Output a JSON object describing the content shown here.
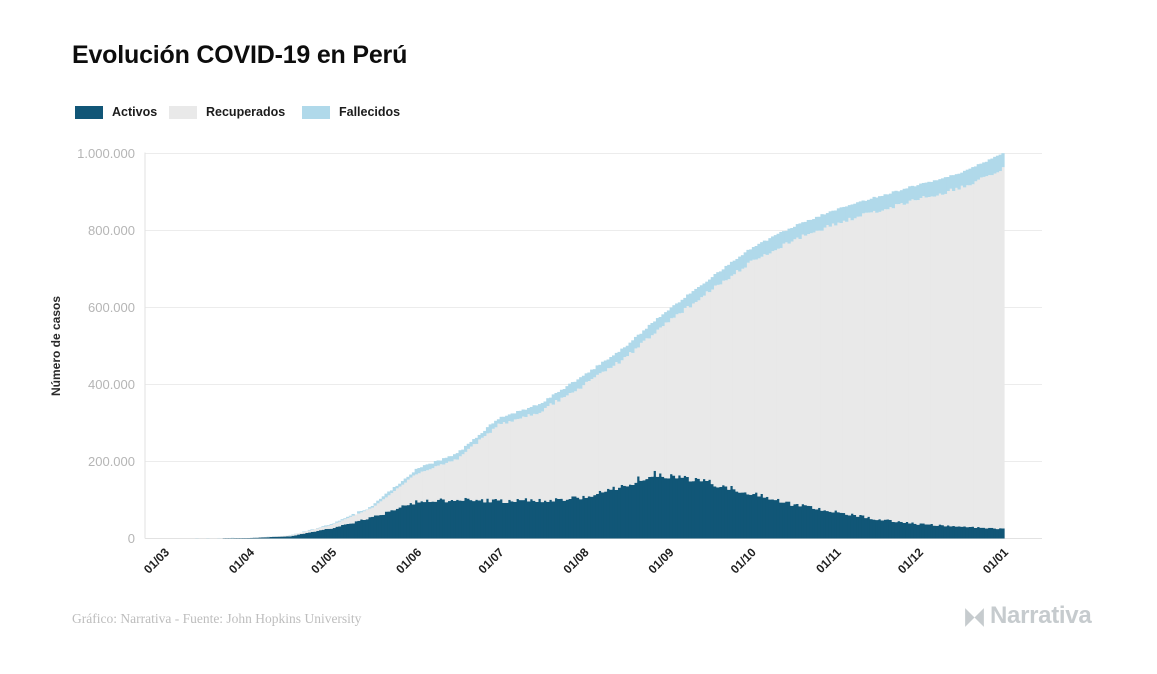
{
  "header": {
    "title": "Evolución COVID-19 en Perú"
  },
  "legend": {
    "items": [
      {
        "label": "Activos",
        "color": "#115677"
      },
      {
        "label": "Recuperados",
        "color": "#e9e9e9"
      },
      {
        "label": "Fallecidos",
        "color": "#b0d9ea"
      }
    ]
  },
  "footer": {
    "credit": "Gráfico: Narrativa - Fuente: John Hopkins University",
    "brand": "Narrativa"
  },
  "chart_data": {
    "type": "area",
    "stacked": true,
    "title": "Evolución COVID-19 en Perú",
    "xlabel": "",
    "ylabel": "Número de casos",
    "ylim": [
      0,
      1000000
    ],
    "grid": "horizontal",
    "legend_position": "top-left",
    "y_ticks": [
      {
        "value": 0,
        "label": "0"
      },
      {
        "value": 200000,
        "label": "200.000"
      },
      {
        "value": 400000,
        "label": "400.000"
      },
      {
        "value": 600000,
        "label": "600.000"
      },
      {
        "value": 800000,
        "label": "800.000"
      },
      {
        "value": 1000000,
        "label": "1.000.000"
      }
    ],
    "x_ticks": [
      {
        "day": 0,
        "label": "01/03"
      },
      {
        "day": 31,
        "label": "01/04"
      },
      {
        "day": 61,
        "label": "01/05"
      },
      {
        "day": 92,
        "label": "01/06"
      },
      {
        "day": 122,
        "label": "01/07"
      },
      {
        "day": 153,
        "label": "01/08"
      },
      {
        "day": 184,
        "label": "01/09"
      },
      {
        "day": 214,
        "label": "01/10"
      },
      {
        "day": 245,
        "label": "01/11"
      },
      {
        "day": 275,
        "label": "01/12"
      },
      {
        "day": 306,
        "label": "01/01"
      }
    ],
    "sample_days": [
      0,
      15,
      31,
      46,
      61,
      76,
      92,
      107,
      122,
      137,
      153,
      168,
      178,
      184,
      199,
      214,
      229,
      245,
      260,
      275,
      290,
      306
    ],
    "series": [
      {
        "name": "Activos",
        "color": "#115677",
        "values": [
          0,
          300,
          1200,
          6000,
          26000,
          55000,
          95000,
          101000,
          97000,
          100000,
          106000,
          138000,
          168000,
          165000,
          145000,
          118000,
          90000,
          70000,
          50000,
          38000,
          31000,
          25000
        ]
      },
      {
        "name": "Recuperados",
        "color": "#e9e9e9",
        "values": [
          0,
          0,
          400,
          2000,
          9000,
          25000,
          73000,
          106000,
          199000,
          230000,
          292000,
          330000,
          362000,
          398000,
          497000,
          601000,
          684000,
          748000,
          800000,
          843000,
          878000,
          935000
        ]
      },
      {
        "name": "Fallecidos",
        "color": "#b0d9ea",
        "values": [
          0,
          0,
          100,
          400,
          2000,
          4000,
          12000,
          14000,
          16000,
          19000,
          25000,
          28000,
          29000,
          31000,
          33000,
          34000,
          35000,
          36000,
          37000,
          38000,
          39000,
          40000
        ]
      }
    ]
  }
}
